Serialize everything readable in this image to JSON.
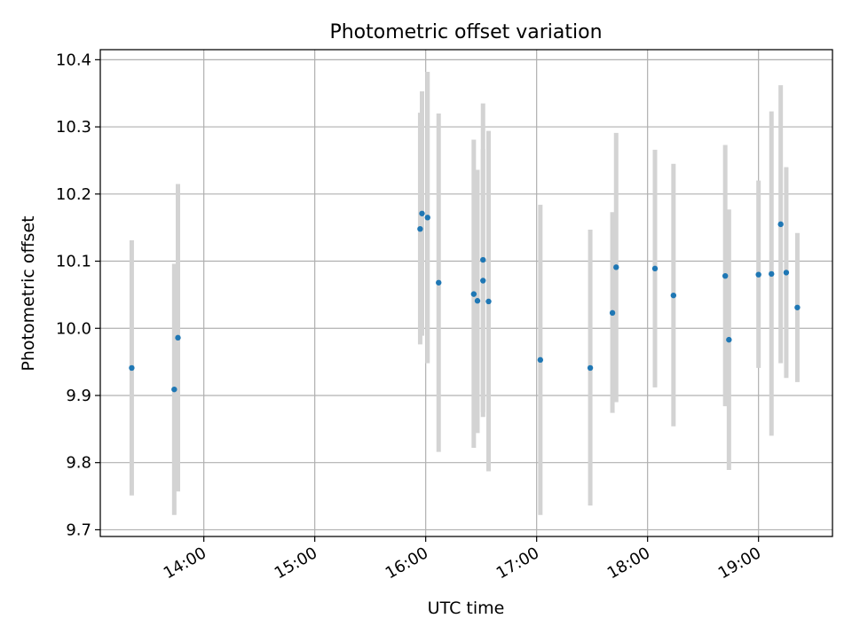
{
  "chart_data": {
    "type": "scatter",
    "title": "Photometric offset variation",
    "xlabel": "UTC time",
    "ylabel": "Photometric offset",
    "x_is_time": true,
    "xlim": [
      "13:04",
      "19:40"
    ],
    "ylim": [
      9.69,
      10.415
    ],
    "x_ticks": [
      "14:00",
      "15:00",
      "16:00",
      "17:00",
      "18:00",
      "19:00"
    ],
    "y_ticks": [
      "9.7",
      "9.8",
      "9.9",
      "10.0",
      "10.1",
      "10.2",
      "10.3",
      "10.4"
    ],
    "grid": true,
    "legend": "none",
    "colors": {
      "marker": "#1f77b4",
      "errorbar": "#d3d3d3",
      "grid": "#b0b0b0"
    },
    "points": [
      {
        "t": "13:21",
        "y": 9.941,
        "lo": 9.751,
        "hi": 10.131
      },
      {
        "t": "13:44",
        "y": 9.909,
        "lo": 9.722,
        "hi": 10.096
      },
      {
        "t": "13:46",
        "y": 9.986,
        "lo": 9.757,
        "hi": 10.215
      },
      {
        "t": "15:57",
        "y": 10.148,
        "lo": 9.976,
        "hi": 10.321
      },
      {
        "t": "15:58",
        "y": 10.171,
        "lo": 9.989,
        "hi": 10.353
      },
      {
        "t": "16:01",
        "y": 10.165,
        "lo": 9.948,
        "hi": 10.382
      },
      {
        "t": "16:07",
        "y": 10.068,
        "lo": 9.816,
        "hi": 10.32
      },
      {
        "t": "16:26",
        "y": 10.051,
        "lo": 9.822,
        "hi": 10.281
      },
      {
        "t": "16:28",
        "y": 10.041,
        "lo": 9.844,
        "hi": 10.236
      },
      {
        "t": "16:31",
        "y": 10.071,
        "lo": 9.875,
        "hi": 10.267
      },
      {
        "t": "16:31",
        "y": 10.102,
        "lo": 9.868,
        "hi": 10.335
      },
      {
        "t": "16:34",
        "y": 10.04,
        "lo": 9.787,
        "hi": 10.294
      },
      {
        "t": "17:02",
        "y": 9.953,
        "lo": 9.722,
        "hi": 10.184
      },
      {
        "t": "17:29",
        "y": 9.941,
        "lo": 9.736,
        "hi": 10.147
      },
      {
        "t": "17:41",
        "y": 10.023,
        "lo": 9.874,
        "hi": 10.173
      },
      {
        "t": "17:43",
        "y": 10.091,
        "lo": 9.89,
        "hi": 10.291
      },
      {
        "t": "18:04",
        "y": 10.089,
        "lo": 9.912,
        "hi": 10.266
      },
      {
        "t": "18:14",
        "y": 10.049,
        "lo": 9.854,
        "hi": 10.245
      },
      {
        "t": "18:42",
        "y": 10.078,
        "lo": 9.884,
        "hi": 10.273
      },
      {
        "t": "18:44",
        "y": 9.983,
        "lo": 9.789,
        "hi": 10.177
      },
      {
        "t": "19:00",
        "y": 10.08,
        "lo": 9.941,
        "hi": 10.22
      },
      {
        "t": "19:07",
        "y": 10.081,
        "lo": 9.84,
        "hi": 10.323
      },
      {
        "t": "19:12",
        "y": 10.155,
        "lo": 9.948,
        "hi": 10.362
      },
      {
        "t": "19:15",
        "y": 10.083,
        "lo": 9.926,
        "hi": 10.24
      },
      {
        "t": "19:21",
        "y": 10.031,
        "lo": 9.92,
        "hi": 10.142
      }
    ]
  }
}
